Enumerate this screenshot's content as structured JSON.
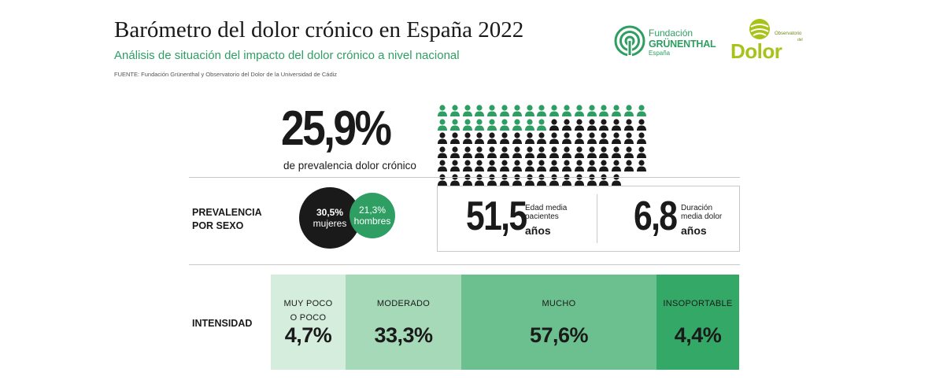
{
  "header": {
    "title": "Barómetro del dolor crónico en España 2022",
    "subtitle": "Análisis de situación del impacto del dolor crónico a nivel nacional",
    "source": "FUENTE: Fundación Grünenthal y Observatorio del Dolor de la Universidad de Cádiz"
  },
  "logos": {
    "grunenthal": {
      "line1": "Fundación",
      "line2": "GRÜNENTHAL",
      "line3": "España",
      "color": "#2e9e63"
    },
    "observatorio": {
      "line1": "Observatorio",
      "line2": "del",
      "line3": "Dolor",
      "color": "#a8c21a"
    }
  },
  "prevalence": {
    "value": "25,9%",
    "label": "de prevalencia dolor crónico",
    "icons_total": 100,
    "icons_highlighted": 26,
    "highlight_color": "#2e9e63",
    "base_color": "#1a1a1a",
    "rows": [
      17,
      17,
      17,
      17,
      17,
      15
    ]
  },
  "sex": {
    "label_line1": "PREVALENCIA",
    "label_line2": "POR SEXO",
    "women": {
      "value": "30,5%",
      "label": "mujeres",
      "color": "#1a1a1a"
    },
    "men": {
      "value": "21,3%",
      "label": "hombres",
      "color": "#2e9e63"
    }
  },
  "stats": {
    "age": {
      "value": "51,5",
      "label_line1": "Edad media",
      "label_line2": "pacientes",
      "unit": "años"
    },
    "duration": {
      "value": "6,8",
      "label_line1": "Duración",
      "label_line2": "media dolor",
      "unit": "años"
    }
  },
  "intensity": {
    "label": "INTENSIDAD",
    "segments": [
      {
        "label_line1": "MUY POCO",
        "label_line2": "O POCO",
        "value": "4,7%",
        "color": "#d4eddd"
      },
      {
        "label_line1": "MODERADO",
        "label_line2": "",
        "value": "33,3%",
        "color": "#a6d9b8"
      },
      {
        "label_line1": "MUCHO",
        "label_line2": "",
        "value": "57,6%",
        "color": "#6cc08f"
      },
      {
        "label_line1": "INSOPORTABLE",
        "label_line2": "",
        "value": "4,4%",
        "color": "#34a866"
      }
    ]
  }
}
